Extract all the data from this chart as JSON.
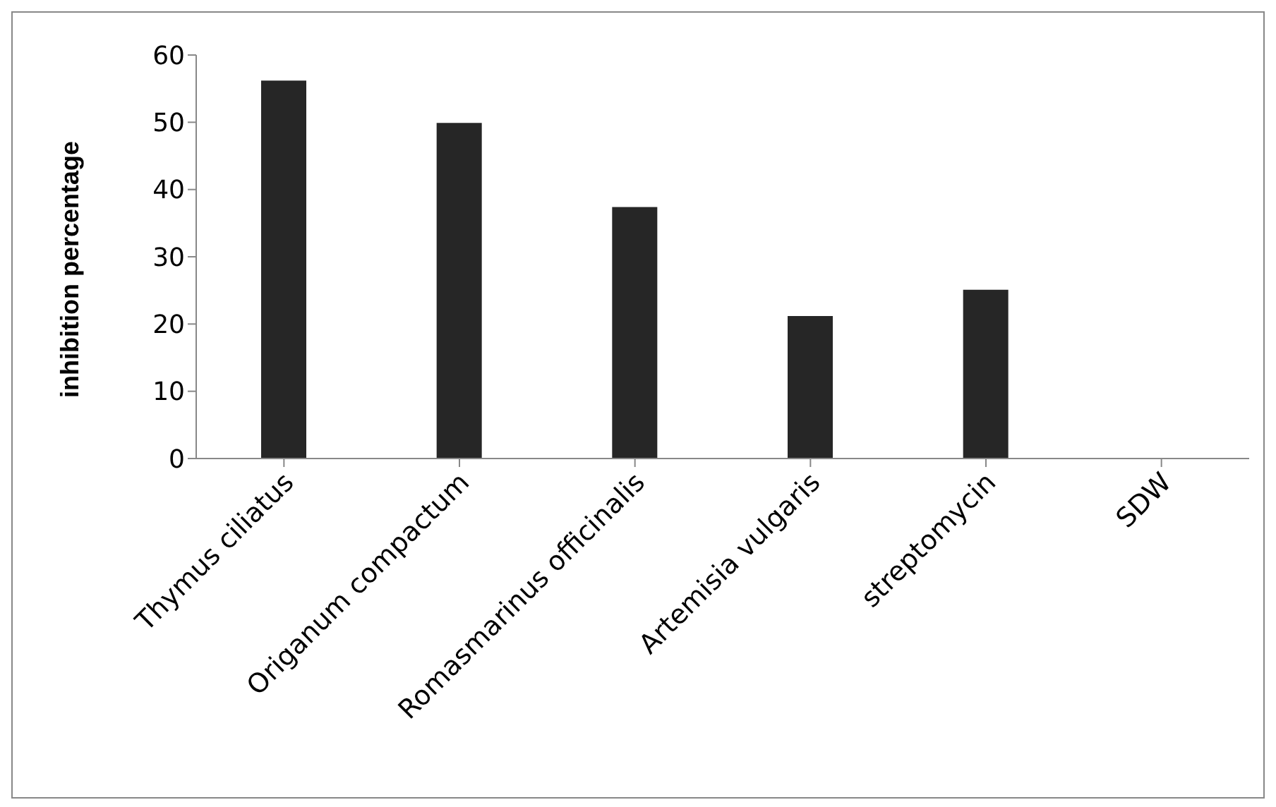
{
  "chart_data": {
    "type": "bar",
    "ylabel": "inhibition percentage",
    "categories": [
      "Thymus ciliatus",
      "Origanum compactum",
      "Romasmarinus officinalis",
      "Artemisia vulgaris",
      "streptomycin",
      "SDW"
    ],
    "values": [
      56.2,
      49.9,
      37.4,
      21.2,
      25.1,
      0
    ],
    "color": "#262626",
    "ylim": [
      0,
      60
    ],
    "yticks": [
      0,
      10,
      20,
      30,
      40,
      50,
      60
    ],
    "grid": false,
    "legend": false
  }
}
